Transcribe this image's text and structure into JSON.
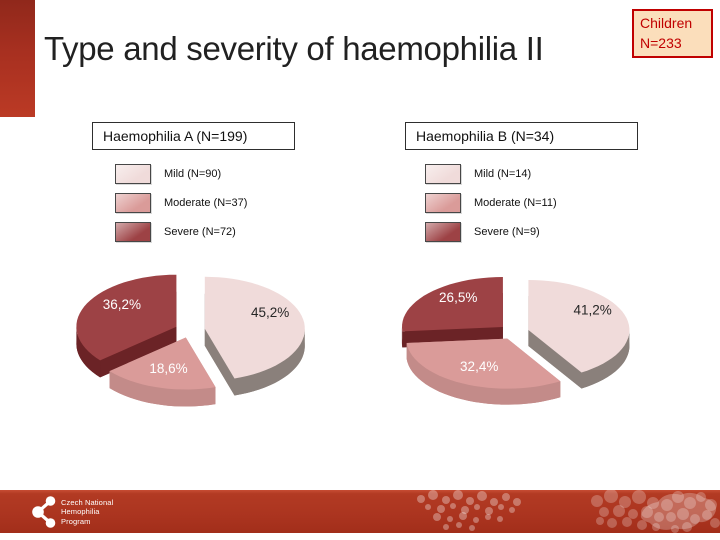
{
  "slide": {
    "title": "Type and severity of haemophilia II"
  },
  "badge": {
    "line1": "Children",
    "line2": "N=233"
  },
  "theme": {
    "accent_red": "#B23A23",
    "left_bar_red": "#A83020",
    "badge_bg": "#FBDEBB",
    "badge_text": "#C00000",
    "title_color": "#212121"
  },
  "footer": {
    "org_lines": [
      "Czech National",
      "Hemophilia",
      "Program"
    ]
  },
  "chart_data": [
    {
      "type": "pie",
      "style": "3d-exploded",
      "title": "Haemophilia A (N=199)",
      "n": 199,
      "severity_keys": [
        "mild",
        "moderate",
        "severe"
      ],
      "labels": [
        "Mild (N=90)",
        "Moderate (N=37)",
        "Severe (N=72)"
      ],
      "counts": [
        90,
        37,
        72
      ],
      "values": [
        45.2,
        18.6,
        36.2
      ],
      "value_labels": [
        "45,2%",
        "18,6%",
        "36,2%"
      ],
      "colors": [
        "#F0DBDA",
        "#DA9B99",
        "#9D4245"
      ],
      "side_colors": [
        "#8A807B",
        "#C38B89",
        "#6B2326"
      ],
      "label_colors": [
        "#262626",
        "#FFFFFF",
        "#FFFFFF"
      ],
      "start_angle_deg": 0,
      "direction": "clockwise",
      "legend_position": "above"
    },
    {
      "type": "pie",
      "style": "3d-exploded",
      "title": "Haemophilia B (N=34)",
      "n": 34,
      "severity_keys": [
        "mild",
        "moderate",
        "severe"
      ],
      "labels": [
        "Mild (N=14)",
        "Moderate (N=11)",
        "Severe (N=9)"
      ],
      "counts": [
        14,
        11,
        9
      ],
      "values": [
        41.2,
        32.4,
        26.5
      ],
      "value_labels": [
        "41,2%",
        "32,4%",
        "26,5%"
      ],
      "colors": [
        "#F0DBDA",
        "#DA9B99",
        "#9D4245"
      ],
      "side_colors": [
        "#8A807B",
        "#C38B89",
        "#6B2326"
      ],
      "label_colors": [
        "#262626",
        "#FFFFFF",
        "#FFFFFF"
      ],
      "start_angle_deg": 0,
      "direction": "clockwise",
      "legend_position": "above"
    }
  ]
}
